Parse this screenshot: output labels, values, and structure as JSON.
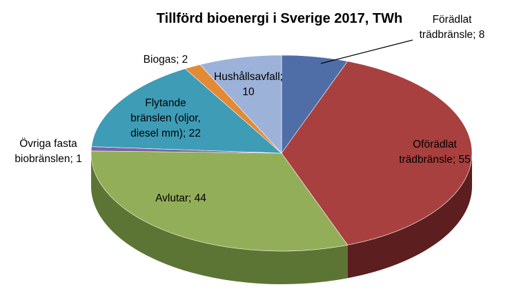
{
  "chart_data": {
    "type": "pie",
    "style": "3d",
    "title": "Tillförd bioenergi i Sverige 2017, TWh",
    "unit": "TWh",
    "slices": [
      {
        "name": "Förädlat trädbränsle",
        "value": 8,
        "label": [
          "Förädlat",
          "trädbränsle; 8"
        ],
        "color": "#4F6EA8",
        "side": "#2E4672"
      },
      {
        "name": "Oförädlat trädbränsle",
        "value": 55,
        "label": [
          "Oförädlat",
          "trädbränsle; 55"
        ],
        "color": "#A8403F",
        "side": "#5C1E1E"
      },
      {
        "name": "Avlutar",
        "value": 44,
        "label": [
          "Avlutar; 44"
        ],
        "color": "#93AE58",
        "side": "#5C7534"
      },
      {
        "name": "Övriga fasta biobränslen",
        "value": 1,
        "label": [
          "Övriga fasta",
          "biobränslen; 1"
        ],
        "color": "#7B64A0",
        "side": "#4C3A68"
      },
      {
        "name": "Flytande bränslen (oljor, diesel mm)",
        "value": 22,
        "label": [
          "Flytande",
          "bränslen (oljor,",
          "diesel mm); 22"
        ],
        "color": "#3E9CB6",
        "side": "#226677"
      },
      {
        "name": "Biogas",
        "value": 2,
        "label": [
          "Biogas; 2"
        ],
        "color": "#E48A35",
        "side": "#A05A18"
      },
      {
        "name": "Hushållsavfall",
        "value": 10,
        "label": [
          "Hushållsavfall;",
          "10"
        ],
        "color": "#9DB2D8",
        "side": "#6A7EA6"
      }
    ]
  }
}
